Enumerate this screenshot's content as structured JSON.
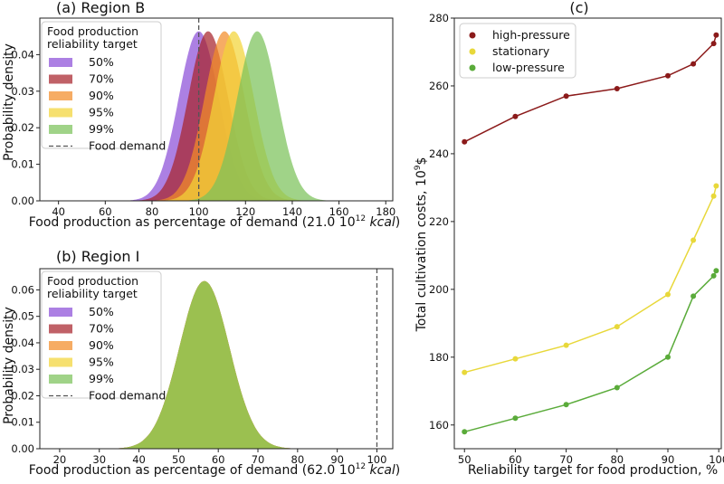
{
  "chart_data": [
    {
      "panel": "a",
      "type": "histogram",
      "title": "(a) Region B",
      "xlabel_prefix": "Food production as percentage of demand (21.0 10",
      "xlabel_sup": "12",
      "xlabel_unit": "kcal",
      "xlabel_suffix": ")",
      "ylabel": "Probability density",
      "xlim": [
        32,
        183
      ],
      "ylim": [
        0,
        0.05
      ],
      "xticks": [
        "40",
        "60",
        "80",
        "100",
        "120",
        "140",
        "160",
        "180"
      ],
      "yticks": [
        "0.00",
        "0.01",
        "0.02",
        "0.03",
        "0.04"
      ],
      "legend_title": [
        "Food production",
        "reliability target"
      ],
      "demand": 100,
      "demand_label": "Food demand",
      "series": [
        {
          "name": "50%",
          "color": "#8c4fd8",
          "mean": 100,
          "sd": 8.6
        },
        {
          "name": "70%",
          "color": "#a8242c",
          "mean": 104,
          "sd": 8.6
        },
        {
          "name": "90%",
          "color": "#f28c28",
          "mean": 111,
          "sd": 8.6
        },
        {
          "name": "95%",
          "color": "#f2d437",
          "mean": 115,
          "sd": 8.6
        },
        {
          "name": "99%",
          "color": "#7bc25a",
          "mean": 125,
          "sd": 8.6
        }
      ]
    },
    {
      "panel": "b",
      "type": "histogram",
      "title": "(b) Region I",
      "xlabel_prefix": "Food production as percentage of demand (62.0 10",
      "xlabel_sup": "12",
      "xlabel_unit": "kcal",
      "xlabel_suffix": ")",
      "ylabel": "Probability density",
      "xlim": [
        15,
        104
      ],
      "ylim": [
        0,
        0.068
      ],
      "xticks": [
        "20",
        "30",
        "40",
        "50",
        "60",
        "70",
        "80",
        "90",
        "100"
      ],
      "yticks": [
        "0.00",
        "0.01",
        "0.02",
        "0.03",
        "0.04",
        "0.05",
        "0.06"
      ],
      "legend_title": [
        "Food production",
        "reliability target"
      ],
      "demand": 100,
      "demand_label": "Food demand",
      "series": [
        {
          "name": "50%",
          "color": "#8c4fd8",
          "mean": 56.5,
          "sd": 6.3
        },
        {
          "name": "70%",
          "color": "#a8242c",
          "mean": 56.5,
          "sd": 6.3
        },
        {
          "name": "90%",
          "color": "#f28c28",
          "mean": 56.5,
          "sd": 6.3
        },
        {
          "name": "95%",
          "color": "#f2d437",
          "mean": 56.5,
          "sd": 6.3
        },
        {
          "name": "99%",
          "color": "#7bc25a",
          "mean": 56.5,
          "sd": 6.3
        }
      ]
    },
    {
      "panel": "c",
      "type": "line",
      "title": "(c)",
      "xlabel": "Reliability target for food production, %",
      "ylabel_prefix": "Total cultivation costs, 10",
      "ylabel_sup": "9",
      "ylabel_suffix": "$",
      "xlim": [
        48,
        100.5
      ],
      "ylim": [
        153,
        280
      ],
      "xticks": [
        "50",
        "60",
        "70",
        "80",
        "90",
        "100"
      ],
      "yticks": [
        "160",
        "180",
        "200",
        "220",
        "240",
        "260",
        "280"
      ],
      "x": [
        50,
        60,
        70,
        80,
        90,
        95,
        99,
        99.5
      ],
      "series": [
        {
          "name": "high-pressure",
          "color": "#8b1a1a",
          "values": [
            243.5,
            251,
            257,
            259.2,
            263,
            266.5,
            272.5,
            275
          ]
        },
        {
          "name": "stationary",
          "color": "#e8d83a",
          "values": [
            175.5,
            179.5,
            183.5,
            189,
            198.5,
            214.5,
            227.5,
            230.5
          ]
        },
        {
          "name": "low-pressure",
          "color": "#5aab3a",
          "values": [
            158,
            162,
            166,
            171,
            180,
            198,
            204,
            205.5
          ]
        }
      ]
    }
  ]
}
